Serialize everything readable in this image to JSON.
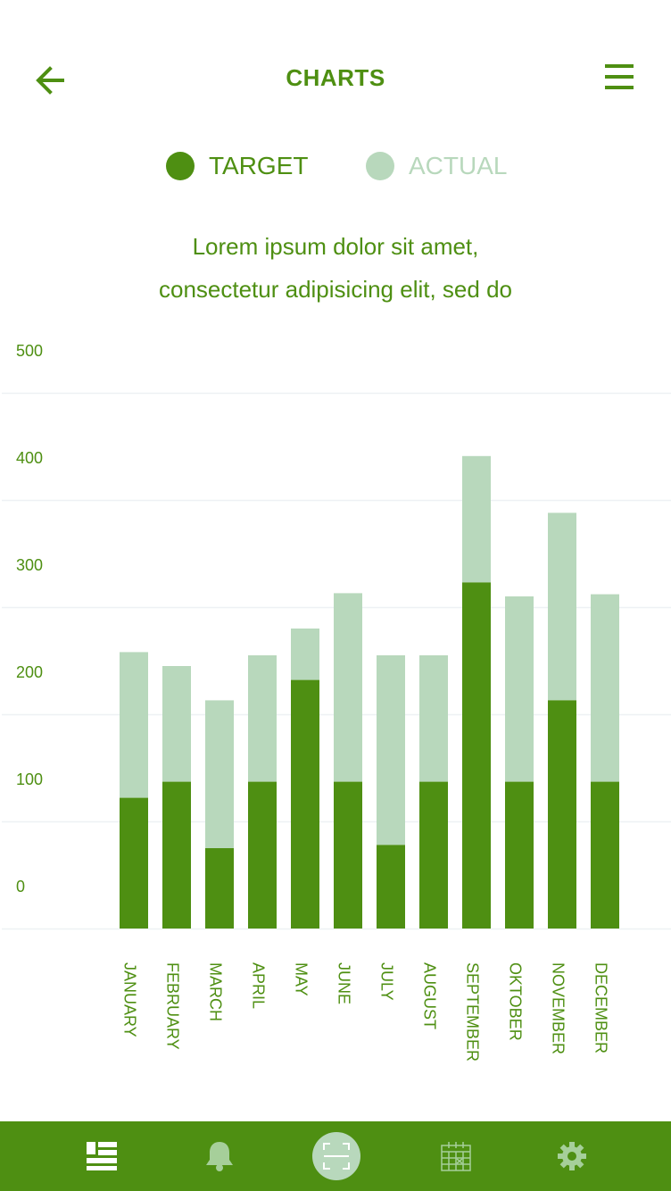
{
  "header": {
    "title": "CHARTS",
    "back_icon": "arrow-left-icon",
    "menu_icon": "hamburger-menu-icon"
  },
  "legend": [
    {
      "label": "TARGET",
      "color": "#4e8f12"
    },
    {
      "label": "ACTUAL",
      "color": "#b8d8bc"
    }
  ],
  "subtitle": {
    "line1": "Lorem ipsum dolor sit amet,",
    "line2": "consectetur adipisicing elit, sed do"
  },
  "chart_data": {
    "type": "bar",
    "stacked": true,
    "categories": [
      "JANUARY",
      "FEBRUARY",
      "MARCH",
      "APRIL",
      "MAY",
      "JUNE",
      "JULY",
      "AUGUST",
      "SEPTEMBER",
      "OKTOBER",
      "NOVEMBER",
      "DECEMBER"
    ],
    "series": [
      {
        "name": "TARGET",
        "color": "#4e8f12",
        "values": [
          122,
          137,
          75,
          137,
          232,
          137,
          78,
          137,
          323,
          137,
          213,
          137
        ]
      },
      {
        "name": "ACTUAL",
        "color": "#b8d8bc",
        "values": [
          136,
          108,
          138,
          118,
          48,
          176,
          177,
          118,
          118,
          173,
          175,
          175
        ]
      }
    ],
    "ylim": [
      0,
      500
    ],
    "yticks": [
      0,
      100,
      200,
      300,
      400,
      500
    ],
    "grid": true,
    "legend_position": "top-center"
  },
  "tabbar": {
    "background": "#4e8f12",
    "tabs": [
      {
        "icon": "dashboard-icon",
        "active": true
      },
      {
        "icon": "bell-icon",
        "active": false
      },
      {
        "icon": "scan-icon",
        "active": false
      },
      {
        "icon": "calendar-icon",
        "active": false
      },
      {
        "icon": "settings-icon",
        "active": false
      }
    ]
  }
}
